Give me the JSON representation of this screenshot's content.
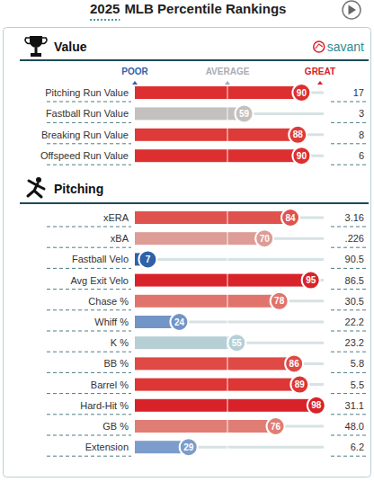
{
  "header": {
    "year": "2025",
    "title": "MLB Percentile Rankings",
    "brand": "savant"
  },
  "chart_data": [
    {
      "type": "bar",
      "title": "Value",
      "orientation": "horizontal",
      "categories": [
        "Pitching Run Value",
        "Fastball Run Value",
        "Breaking Run Value",
        "Offspeed Run Value"
      ],
      "values": [
        90,
        59,
        88,
        90
      ],
      "colors": [
        "#dd2f30",
        "#c4c0bf",
        "#de3a38",
        "#dd2f30"
      ],
      "stats": [
        "17",
        "3",
        "8",
        "6"
      ],
      "xlim": [
        0,
        100
      ],
      "xticks": [
        {
          "value": 0,
          "label": "POOR"
        },
        {
          "value": 50,
          "label": "AVERAGE"
        },
        {
          "value": 100,
          "label": "GREAT"
        }
      ],
      "tick_labels": "x",
      "data_labels": true
    },
    {
      "type": "bar",
      "title": "Pitching",
      "orientation": "horizontal",
      "categories": [
        "xERA",
        "xBA",
        "Fastball Velo",
        "Avg Exit Velo",
        "Chase %",
        "Whiff %",
        "K %",
        "BB %",
        "Barrel %",
        "Hard-Hit %",
        "GB %",
        "Extension"
      ],
      "values": [
        84,
        70,
        7,
        95,
        78,
        24,
        55,
        86,
        89,
        98,
        76,
        29
      ],
      "colors": [
        "#e0524d",
        "#dd9c96",
        "#2f61a9",
        "#d9232b",
        "#e0746c",
        "#7294c6",
        "#b6cfd5",
        "#df4a46",
        "#dd3634",
        "#d82129",
        "#e07d75",
        "#7c9dcb"
      ],
      "stats": [
        "3.16",
        ".226",
        "90.5",
        "86.5",
        "30.5",
        "22.2",
        "23.2",
        "5.8",
        "5.5",
        "31.1",
        "48.0",
        "6.2"
      ],
      "xlim": [
        0,
        100
      ],
      "tick_labels": false,
      "data_labels": true
    }
  ]
}
